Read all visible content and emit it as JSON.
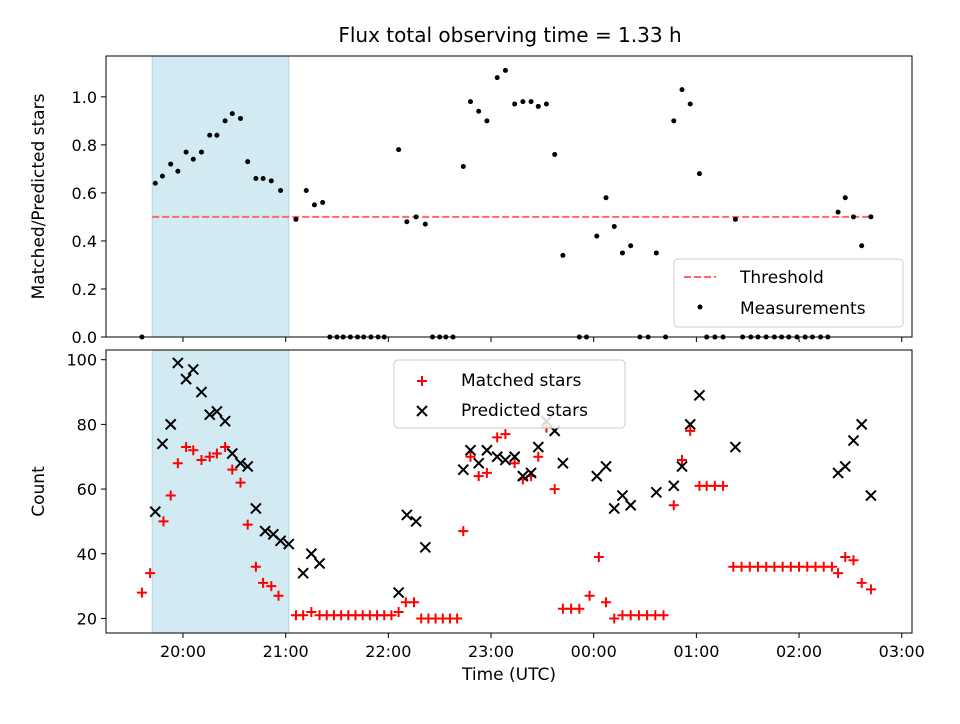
{
  "title": "Flux total observing time = 1.33 h",
  "colors": {
    "shade": "#add8e6",
    "threshold": "#ff6666",
    "measurement": "#000000",
    "matched": "#ff0000",
    "predicted": "#000000"
  },
  "chart_data": [
    {
      "type": "scatter",
      "panel": "top",
      "ylabel": "Matched/Predicted stars",
      "xlim": [
        19.25,
        27.1
      ],
      "ylim": [
        0,
        1.17
      ],
      "y_ticks": [
        0.0,
        0.2,
        0.4,
        0.6,
        0.8,
        1.0
      ],
      "y_tick_labels": [
        "0.0",
        "0.2",
        "0.4",
        "0.6",
        "0.8",
        "1.0"
      ],
      "shaded_interval": [
        19.7,
        21.03
      ],
      "threshold": {
        "name": "Threshold",
        "value": 0.5,
        "x_range": [
          19.7,
          26.7
        ]
      },
      "legend": {
        "placement": "lower right",
        "entries": [
          "Threshold",
          "Measurements"
        ]
      },
      "series": [
        {
          "name": "Measurements",
          "points": [
            [
              19.6,
              0.0
            ],
            [
              19.73,
              0.64
            ],
            [
              19.8,
              0.67
            ],
            [
              19.88,
              0.72
            ],
            [
              19.95,
              0.69
            ],
            [
              20.03,
              0.77
            ],
            [
              20.1,
              0.74
            ],
            [
              20.18,
              0.77
            ],
            [
              20.26,
              0.84
            ],
            [
              20.33,
              0.84
            ],
            [
              20.41,
              0.9
            ],
            [
              20.48,
              0.93
            ],
            [
              20.56,
              0.91
            ],
            [
              20.63,
              0.73
            ],
            [
              20.71,
              0.66
            ],
            [
              20.78,
              0.66
            ],
            [
              20.86,
              0.65
            ],
            [
              20.95,
              0.61
            ],
            [
              21.1,
              0.49
            ],
            [
              21.2,
              0.61
            ],
            [
              21.28,
              0.55
            ],
            [
              21.36,
              0.56
            ],
            [
              21.43,
              0.0
            ],
            [
              21.5,
              0.0
            ],
            [
              21.56,
              0.0
            ],
            [
              21.63,
              0.0
            ],
            [
              21.7,
              0.0
            ],
            [
              21.76,
              0.0
            ],
            [
              21.83,
              0.0
            ],
            [
              21.9,
              0.0
            ],
            [
              21.96,
              0.0
            ],
            [
              22.1,
              0.78
            ],
            [
              22.18,
              0.48
            ],
            [
              22.27,
              0.5
            ],
            [
              22.36,
              0.47
            ],
            [
              22.43,
              0.0
            ],
            [
              22.5,
              0.0
            ],
            [
              22.56,
              0.0
            ],
            [
              22.63,
              0.0
            ],
            [
              22.73,
              0.71
            ],
            [
              22.8,
              0.98
            ],
            [
              22.88,
              0.94
            ],
            [
              22.96,
              0.9
            ],
            [
              23.06,
              1.08
            ],
            [
              23.14,
              1.11
            ],
            [
              23.23,
              0.97
            ],
            [
              23.31,
              0.98
            ],
            [
              23.39,
              0.98
            ],
            [
              23.46,
              0.96
            ],
            [
              23.54,
              0.97
            ],
            [
              23.62,
              0.76
            ],
            [
              23.7,
              0.34
            ],
            [
              23.86,
              0.0
            ],
            [
              23.93,
              0.0
            ],
            [
              24.03,
              0.42
            ],
            [
              24.12,
              0.58
            ],
            [
              24.2,
              0.46
            ],
            [
              24.28,
              0.35
            ],
            [
              24.36,
              0.38
            ],
            [
              24.45,
              0.0
            ],
            [
              24.53,
              0.0
            ],
            [
              24.61,
              0.35
            ],
            [
              24.7,
              0.0
            ],
            [
              24.78,
              0.9
            ],
            [
              24.86,
              1.03
            ],
            [
              24.94,
              0.97
            ],
            [
              25.03,
              0.68
            ],
            [
              25.1,
              0.0
            ],
            [
              25.18,
              0.0
            ],
            [
              25.26,
              0.0
            ],
            [
              25.38,
              0.49
            ],
            [
              25.45,
              0.0
            ],
            [
              25.53,
              0.0
            ],
            [
              25.6,
              0.0
            ],
            [
              25.68,
              0.0
            ],
            [
              25.76,
              0.0
            ],
            [
              25.83,
              0.0
            ],
            [
              25.9,
              0.0
            ],
            [
              25.98,
              0.0
            ],
            [
              26.06,
              0.0
            ],
            [
              26.13,
              0.0
            ],
            [
              26.21,
              0.0
            ],
            [
              26.28,
              0.0
            ],
            [
              26.38,
              0.52
            ],
            [
              26.45,
              0.58
            ],
            [
              26.53,
              0.5
            ],
            [
              26.61,
              0.38
            ],
            [
              26.7,
              0.5
            ]
          ]
        }
      ]
    },
    {
      "type": "scatter",
      "panel": "bottom",
      "xlabel": "Time (UTC)",
      "ylabel": "Count",
      "xlim": [
        19.25,
        27.1
      ],
      "ylim": [
        15.5,
        103
      ],
      "x_ticks": [
        20,
        21,
        22,
        23,
        24,
        25,
        26,
        27
      ],
      "x_tick_labels": [
        "20:00",
        "21:00",
        "22:00",
        "23:00",
        "00:00",
        "01:00",
        "02:00",
        "03:00"
      ],
      "y_ticks": [
        20,
        40,
        60,
        80,
        100
      ],
      "y_tick_labels": [
        "20",
        "40",
        "60",
        "80",
        "100"
      ],
      "shaded_interval": [
        19.7,
        21.03
      ],
      "legend": {
        "placement": "upper center",
        "entries": [
          "Matched stars",
          "Predicted stars"
        ]
      },
      "series": [
        {
          "name": "Matched stars",
          "marker": "plus",
          "points": [
            [
              19.6,
              28
            ],
            [
              19.68,
              34
            ],
            [
              19.81,
              50
            ],
            [
              19.88,
              58
            ],
            [
              19.95,
              68
            ],
            [
              20.03,
              73
            ],
            [
              20.1,
              72
            ],
            [
              20.18,
              69
            ],
            [
              20.26,
              70
            ],
            [
              20.33,
              71
            ],
            [
              20.41,
              73
            ],
            [
              20.48,
              66
            ],
            [
              20.56,
              62
            ],
            [
              20.63,
              49
            ],
            [
              20.71,
              36
            ],
            [
              20.78,
              31
            ],
            [
              20.86,
              30
            ],
            [
              20.93,
              27
            ],
            [
              21.1,
              21
            ],
            [
              21.17,
              21
            ],
            [
              21.25,
              22
            ],
            [
              21.33,
              21
            ],
            [
              21.4,
              21
            ],
            [
              21.47,
              21
            ],
            [
              21.54,
              21
            ],
            [
              21.61,
              21
            ],
            [
              21.68,
              21
            ],
            [
              21.75,
              21
            ],
            [
              21.82,
              21
            ],
            [
              21.89,
              21
            ],
            [
              21.96,
              21
            ],
            [
              22.03,
              21
            ],
            [
              22.1,
              22
            ],
            [
              22.17,
              25
            ],
            [
              22.25,
              25
            ],
            [
              22.32,
              20
            ],
            [
              22.39,
              20
            ],
            [
              22.46,
              20
            ],
            [
              22.53,
              20
            ],
            [
              22.6,
              20
            ],
            [
              22.67,
              20
            ],
            [
              22.73,
              47
            ],
            [
              22.8,
              70
            ],
            [
              22.88,
              64
            ],
            [
              22.96,
              65
            ],
            [
              23.06,
              76
            ],
            [
              23.14,
              77
            ],
            [
              23.23,
              68
            ],
            [
              23.31,
              63
            ],
            [
              23.39,
              64
            ],
            [
              23.46,
              70
            ],
            [
              23.54,
              79
            ],
            [
              23.62,
              60
            ],
            [
              23.7,
              23
            ],
            [
              23.78,
              23
            ],
            [
              23.86,
              23
            ],
            [
              23.96,
              27
            ],
            [
              24.05,
              39
            ],
            [
              24.12,
              25
            ],
            [
              24.2,
              20
            ],
            [
              24.28,
              21
            ],
            [
              24.36,
              21
            ],
            [
              24.44,
              21
            ],
            [
              24.52,
              21
            ],
            [
              24.6,
              21
            ],
            [
              24.68,
              21
            ],
            [
              24.78,
              55
            ],
            [
              24.86,
              69
            ],
            [
              24.94,
              78
            ],
            [
              25.03,
              61
            ],
            [
              25.1,
              61
            ],
            [
              25.18,
              61
            ],
            [
              25.26,
              61
            ],
            [
              25.36,
              36
            ],
            [
              25.44,
              36
            ],
            [
              25.52,
              36
            ],
            [
              25.6,
              36
            ],
            [
              25.68,
              36
            ],
            [
              25.76,
              36
            ],
            [
              25.84,
              36
            ],
            [
              25.92,
              36
            ],
            [
              26.0,
              36
            ],
            [
              26.08,
              36
            ],
            [
              26.16,
              36
            ],
            [
              26.24,
              36
            ],
            [
              26.32,
              36
            ],
            [
              26.38,
              34
            ],
            [
              26.45,
              39
            ],
            [
              26.53,
              38
            ],
            [
              26.61,
              31
            ],
            [
              26.7,
              29
            ]
          ]
        },
        {
          "name": "Predicted stars",
          "marker": "x",
          "points": [
            [
              19.73,
              53
            ],
            [
              19.8,
              74
            ],
            [
              19.88,
              80
            ],
            [
              19.95,
              99
            ],
            [
              20.03,
              94
            ],
            [
              20.1,
              97
            ],
            [
              20.18,
              90
            ],
            [
              20.26,
              83
            ],
            [
              20.33,
              84
            ],
            [
              20.41,
              81
            ],
            [
              20.48,
              71
            ],
            [
              20.56,
              68
            ],
            [
              20.63,
              67
            ],
            [
              20.71,
              54
            ],
            [
              20.8,
              47
            ],
            [
              20.88,
              46
            ],
            [
              20.95,
              44
            ],
            [
              21.03,
              43
            ],
            [
              21.17,
              34
            ],
            [
              21.25,
              40
            ],
            [
              21.33,
              37
            ],
            [
              22.1,
              28
            ],
            [
              22.18,
              52
            ],
            [
              22.27,
              50
            ],
            [
              22.36,
              42
            ],
            [
              22.73,
              66
            ],
            [
              22.8,
              72
            ],
            [
              22.88,
              68
            ],
            [
              22.96,
              72
            ],
            [
              23.06,
              70
            ],
            [
              23.14,
              69
            ],
            [
              23.23,
              70
            ],
            [
              23.31,
              64
            ],
            [
              23.39,
              65
            ],
            [
              23.46,
              73
            ],
            [
              23.54,
              81
            ],
            [
              23.62,
              78
            ],
            [
              23.7,
              68
            ],
            [
              24.03,
              64
            ],
            [
              24.12,
              67
            ],
            [
              24.2,
              54
            ],
            [
              24.28,
              58
            ],
            [
              24.36,
              55
            ],
            [
              24.61,
              59
            ],
            [
              24.78,
              61
            ],
            [
              24.86,
              67
            ],
            [
              24.94,
              80
            ],
            [
              25.03,
              89
            ],
            [
              25.38,
              73
            ],
            [
              26.38,
              65
            ],
            [
              26.45,
              67
            ],
            [
              26.53,
              75
            ],
            [
              26.61,
              80
            ],
            [
              26.7,
              58
            ]
          ]
        }
      ]
    }
  ]
}
